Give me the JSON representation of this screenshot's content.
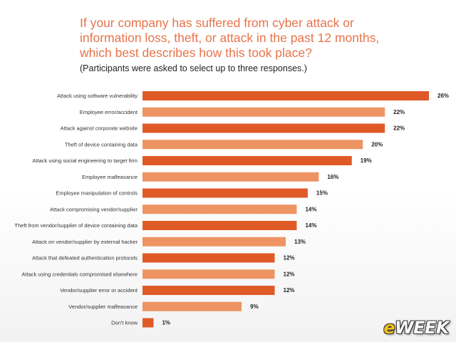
{
  "header": {
    "title_line1": "If your company has suffered from cyber attack or",
    "title_line2": "information loss, theft, or attack in the past 12 months,",
    "title_line3": "which best describes how this took place?",
    "subtitle": "(Participants were asked to select up to three responses.)"
  },
  "chart_data": {
    "type": "bar",
    "orientation": "horizontal",
    "categories": [
      "Attack using software vulnerability",
      "Employee error/accident",
      "Attack against corporate website",
      "Theft of device containing data",
      "Attack using social engineering to target firm",
      "Employee malfeasance",
      "Employee manipulation of controls",
      "Attack compromising vendor/supplier",
      "Theft from vendor/supplier of device containing data",
      "Attack on vendor/supplier by external hacker",
      "Attack that defeated authentication protocols",
      "Attack using credentials compromised elsewhere",
      "Vendor/supplier error or accident",
      "Vendor/supplier malfeasance",
      "Don't know"
    ],
    "values": [
      26,
      22,
      22,
      20,
      19,
      16,
      15,
      14,
      14,
      13,
      12,
      12,
      12,
      9,
      1
    ],
    "value_labels": [
      "26%",
      "22%",
      "22%",
      "20%",
      "19%",
      "16%",
      "15%",
      "14%",
      "14%",
      "13%",
      "12%",
      "12%",
      "12%",
      "9%",
      "1%"
    ],
    "bar_colors": [
      "#e05a28",
      "#ee9462",
      "#e05a28",
      "#ee9462",
      "#e05a28",
      "#ee9462",
      "#e05a28",
      "#ee9462",
      "#e05a28",
      "#ee9462",
      "#e05a28",
      "#ee9462",
      "#e05a28",
      "#ee9462",
      "#e05a28"
    ],
    "xlim": [
      0,
      26
    ],
    "grid": false,
    "legend": "none"
  },
  "logo": {
    "e": "e",
    "rest": "WEEK"
  }
}
